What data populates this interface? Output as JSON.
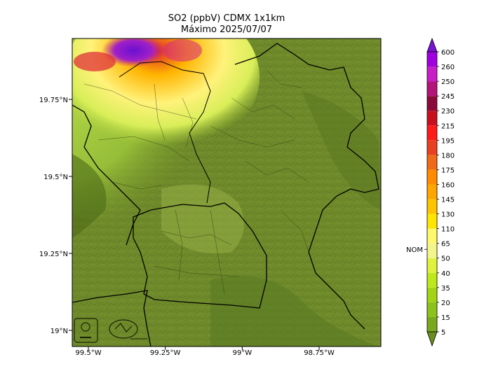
{
  "title": "SO2 (ppbV) CDMX 1x1km",
  "subtitle": "Máximo 2025/07/07",
  "lat_ticks": [
    {
      "label": "19.75°N",
      "value": 19.75
    },
    {
      "label": "19.5°N",
      "value": 19.5
    },
    {
      "label": "19.25°N",
      "value": 19.25
    },
    {
      "label": "19°N",
      "value": 19.0
    }
  ],
  "lon_ticks": [
    {
      "label": "99.5°W",
      "value": -99.5
    },
    {
      "label": "99.25°W",
      "value": -99.25
    },
    {
      "label": "99°W",
      "value": -99.0
    },
    {
      "label": "98.75°W",
      "value": -98.75
    }
  ],
  "colorbar": {
    "levels": [
      "5",
      "15",
      "20",
      "35",
      "40",
      "50",
      "65",
      "110",
      "130",
      "145",
      "160",
      "175",
      "180",
      "195",
      "215",
      "230",
      "245",
      "250",
      "260",
      "600"
    ],
    "colors": [
      "#6b8e23",
      "#7aa81c",
      "#8cc21a",
      "#a3d413",
      "#bfe81a",
      "#dff23c",
      "#f2f68a",
      "#fff86a",
      "#ffe600",
      "#ffc400",
      "#ffa500",
      "#ff8c00",
      "#f06a18",
      "#e84020",
      "#ff1a1a",
      "#c8101c",
      "#8c0a3a",
      "#b4137a",
      "#c81ec8",
      "#a000e0",
      "#7a12d6"
    ],
    "nom_label": "NOM",
    "nom_value": "65"
  },
  "logos": [
    "SEDEMA logo",
    "Gobierno de la Ciudad de México logo"
  ]
}
